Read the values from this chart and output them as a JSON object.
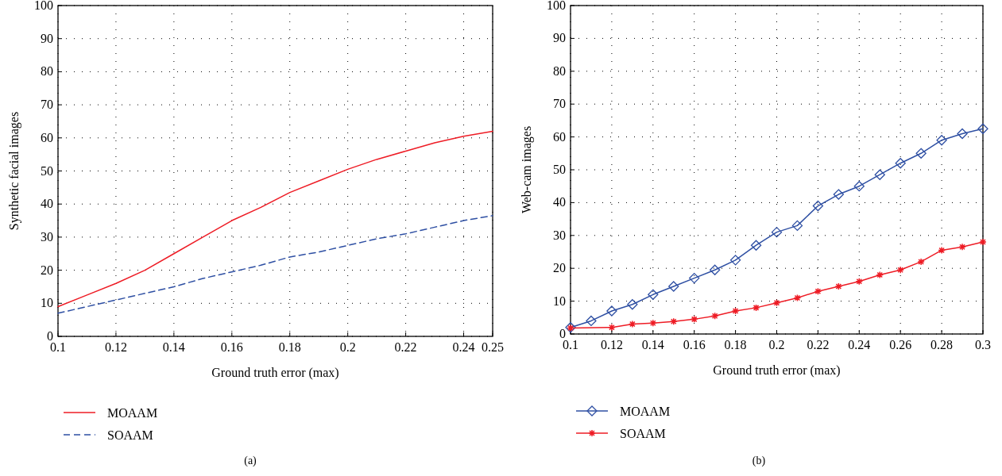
{
  "chart_data": [
    {
      "type": "line",
      "xlabel": "Ground truth error (max)",
      "ylabel": "Synthetic facial images",
      "annotations": [
        "(a)"
      ],
      "x": [
        0.1,
        0.11,
        0.12,
        0.13,
        0.14,
        0.15,
        0.16,
        0.17,
        0.18,
        0.19,
        0.2,
        0.21,
        0.22,
        0.23,
        0.24,
        0.25
      ],
      "xlim": [
        0.1,
        0.25
      ],
      "xticks": [
        0.1,
        0.12,
        0.14,
        0.16,
        0.18,
        0.2,
        0.22,
        0.24,
        0.25
      ],
      "ylim": [
        0,
        100
      ],
      "yticks": [
        0,
        10,
        20,
        30,
        40,
        50,
        60,
        70,
        80,
        90,
        100
      ],
      "grid": true,
      "legend": "bottom",
      "series": [
        {
          "name": "MOAAM",
          "color": "#ee1c25",
          "line_style": "solid",
          "marker": "none",
          "values": [
            9,
            12.5,
            16,
            20,
            25,
            30,
            35,
            39,
            43.5,
            47,
            50.5,
            53.5,
            56,
            58.5,
            60.5,
            62
          ]
        },
        {
          "name": "SOAAM",
          "color": "#2e4fa3",
          "line_style": "dashed",
          "marker": "none",
          "values": [
            7,
            9,
            11,
            13,
            15,
            17.5,
            19.5,
            21.5,
            24,
            25.5,
            27.5,
            29.5,
            31,
            33,
            35,
            36.5
          ]
        }
      ]
    },
    {
      "type": "line",
      "xlabel": "Ground truth error (max)",
      "ylabel": "Web-cam images",
      "annotations": [
        "(b)"
      ],
      "xlim": [
        0.1,
        0.3
      ],
      "xticks": [
        0.1,
        0.12,
        0.14,
        0.16,
        0.18,
        0.2,
        0.22,
        0.24,
        0.26,
        0.28,
        0.3
      ],
      "ylim": [
        0,
        100
      ],
      "yticks": [
        0,
        10,
        20,
        30,
        40,
        50,
        60,
        70,
        80,
        90,
        100
      ],
      "grid": true,
      "legend": "bottom",
      "series": [
        {
          "name": "MOAAM",
          "color": "#2e4fa3",
          "line_style": "solid",
          "marker": "diamond",
          "x": [
            0.1,
            0.11,
            0.12,
            0.13,
            0.14,
            0.15,
            0.16,
            0.17,
            0.18,
            0.19,
            0.2,
            0.21,
            0.22,
            0.23,
            0.24,
            0.25,
            0.26,
            0.27,
            0.28,
            0.29,
            0.3
          ],
          "values": [
            2,
            4,
            7,
            9,
            12,
            14.5,
            17,
            19.5,
            22.5,
            27,
            31,
            33,
            39,
            42.5,
            45,
            48.5,
            52,
            55,
            59,
            61,
            62.5
          ]
        },
        {
          "name": "SOAAM",
          "color": "#ee1c25",
          "line_style": "solid",
          "marker": "cross",
          "x": [
            0.1,
            0.12,
            0.13,
            0.14,
            0.15,
            0.16,
            0.17,
            0.18,
            0.19,
            0.2,
            0.21,
            0.22,
            0.23,
            0.24,
            0.25,
            0.26,
            0.27,
            0.28,
            0.29,
            0.3
          ],
          "values": [
            1.8,
            2,
            3,
            3.3,
            3.8,
            4.5,
            5.5,
            7,
            8,
            9.5,
            11,
            13,
            14.5,
            16,
            18,
            19.5,
            22,
            25.5,
            26.5,
            28
          ]
        }
      ]
    }
  ]
}
